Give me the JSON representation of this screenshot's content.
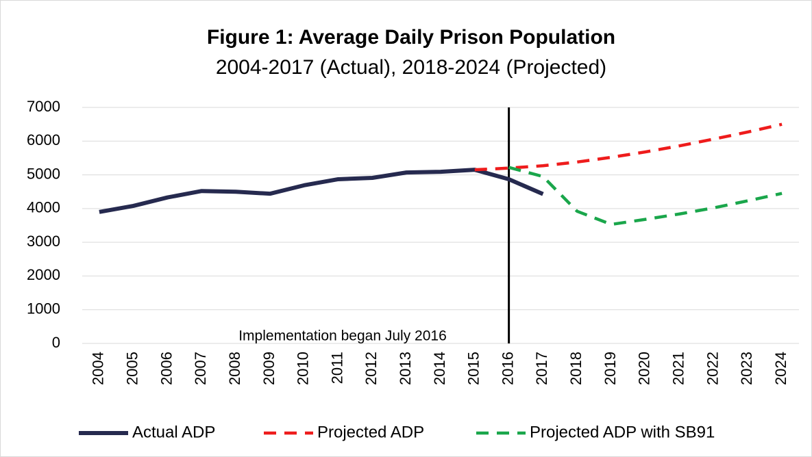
{
  "chart_data": {
    "type": "line",
    "title": "Figure 1: Average Daily Prison Population",
    "subtitle": "2004-2017 (Actual), 2018-2024 (Projected)",
    "categories": [
      "2004",
      "2005",
      "2006",
      "2007",
      "2008",
      "2009",
      "2010",
      "2011",
      "2012",
      "2013",
      "2014",
      "2015",
      "2016",
      "2017",
      "2018",
      "2019",
      "2020",
      "2021",
      "2022",
      "2023",
      "2024"
    ],
    "series": [
      {
        "name": "Actual ADP",
        "color": "#262a4f",
        "dash": false,
        "values": [
          3900,
          4080,
          4330,
          4520,
          4500,
          4440,
          4690,
          4870,
          4910,
          5070,
          5090,
          5150,
          4870,
          4430,
          null,
          null,
          null,
          null,
          null,
          null,
          null
        ]
      },
      {
        "name": "Projected ADP",
        "color": "#ee1c1c",
        "dash": true,
        "values": [
          null,
          null,
          null,
          null,
          null,
          null,
          null,
          null,
          null,
          null,
          null,
          5150,
          5200,
          5270,
          5380,
          5520,
          5680,
          5860,
          6060,
          6270,
          6500
        ]
      },
      {
        "name": "Projected ADP with SB91",
        "color": "#1aa64b",
        "dash": true,
        "values": [
          null,
          null,
          null,
          null,
          null,
          null,
          null,
          null,
          null,
          null,
          null,
          null,
          5220,
          4950,
          3920,
          3530,
          3680,
          3840,
          4020,
          4230,
          4450
        ]
      }
    ],
    "ylim": [
      0,
      7000
    ],
    "yticks": [
      0,
      1000,
      2000,
      3000,
      4000,
      5000,
      6000,
      7000
    ],
    "grid": true,
    "vline": {
      "x": "2016",
      "label": "Implementation began July 2016"
    },
    "legend": "bottom"
  }
}
